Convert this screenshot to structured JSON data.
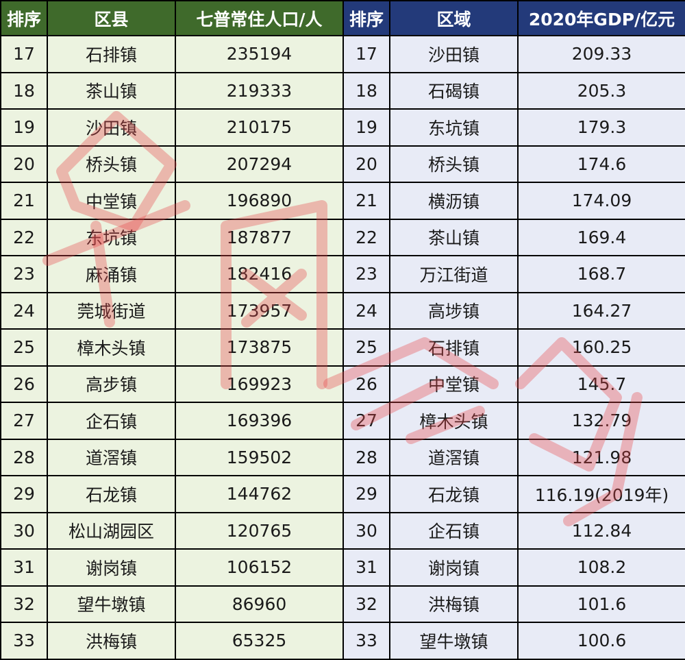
{
  "left_table": {
    "headers": [
      "排序",
      "区县",
      "七普常住人口/人"
    ],
    "rows": [
      [
        "17",
        "石排镇",
        "235194"
      ],
      [
        "18",
        "茶山镇",
        "219333"
      ],
      [
        "19",
        "沙田镇",
        "210175"
      ],
      [
        "20",
        "桥头镇",
        "207294"
      ],
      [
        "21",
        "中堂镇",
        "196890"
      ],
      [
        "22",
        "东坑镇",
        "187877"
      ],
      [
        "23",
        "麻涌镇",
        "182416"
      ],
      [
        "24",
        "莞城街道",
        "173957"
      ],
      [
        "25",
        "樟木头镇",
        "173875"
      ],
      [
        "26",
        "高步镇",
        "169923"
      ],
      [
        "27",
        "企石镇",
        "169396"
      ],
      [
        "28",
        "道滘镇",
        "159502"
      ],
      [
        "29",
        "石龙镇",
        "144762"
      ],
      [
        "30",
        "松山湖园区",
        "120765"
      ],
      [
        "31",
        "谢岗镇",
        "106152"
      ],
      [
        "32",
        "望牛墩镇",
        "86960"
      ],
      [
        "33",
        "洪梅镇",
        "65325"
      ]
    ]
  },
  "right_table": {
    "headers": [
      "排序",
      "区域",
      "2020年GDP/亿元"
    ],
    "rows": [
      [
        "17",
        "沙田镇",
        "209.33"
      ],
      [
        "18",
        "石碣镇",
        "205.3"
      ],
      [
        "19",
        "东坑镇",
        "179.3"
      ],
      [
        "20",
        "桥头镇",
        "174.6"
      ],
      [
        "21",
        "横沥镇",
        "174.09"
      ],
      [
        "22",
        "茶山镇",
        "169.4"
      ],
      [
        "23",
        "万江街道",
        "168.7"
      ],
      [
        "24",
        "高埗镇",
        "164.27"
      ],
      [
        "25",
        "石排镇",
        "160.25"
      ],
      [
        "26",
        "中堂镇",
        "145.7"
      ],
      [
        "27",
        "樟木头镇",
        "132.79"
      ],
      [
        "28",
        "道滘镇",
        "121.98"
      ],
      [
        "29",
        "石龙镇",
        "116.19(2019年)"
      ],
      [
        "30",
        "企石镇",
        "112.84"
      ],
      [
        "31",
        "谢岗镇",
        "108.2"
      ],
      [
        "32",
        "洪梅镇",
        "101.6"
      ],
      [
        "33",
        "望牛墩镇",
        "100.6"
      ]
    ]
  },
  "colors": {
    "left_header_bg": "#3f6a2b",
    "right_header_bg": "#233a7a",
    "left_cell_bg": "#ecf3e0",
    "right_cell_bg": "#e8ebf6",
    "watermark": "#e8474a"
  }
}
